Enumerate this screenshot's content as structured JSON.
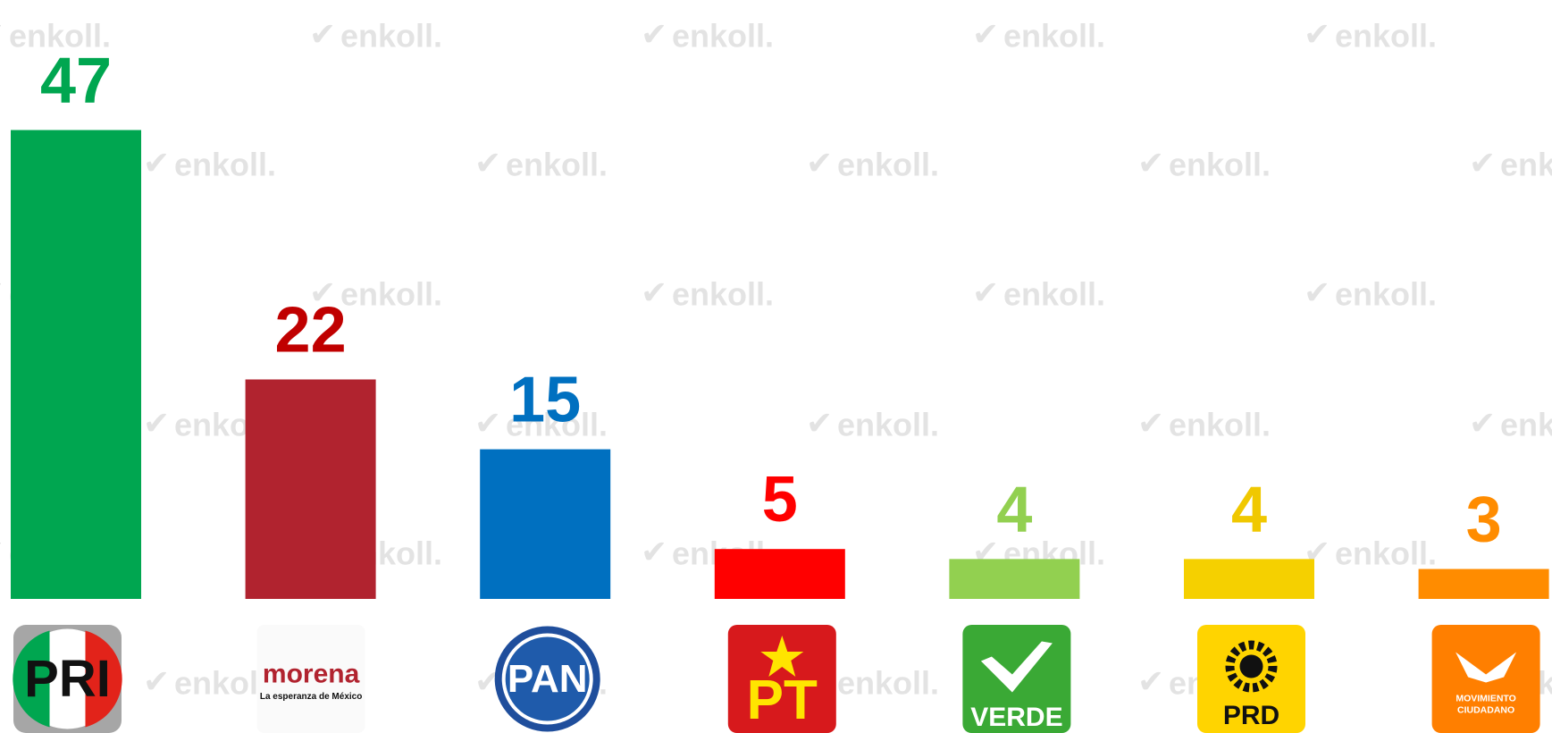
{
  "chart_data": {
    "type": "bar",
    "watermark": "enkoll.",
    "categories": [
      "PRI",
      "morena",
      "PAN",
      "PT",
      "VERDE",
      "PRD",
      "MOVIMIENTO CIUDADANO"
    ],
    "morena_tagline": "La esperanza de México",
    "values": [
      47,
      22,
      15,
      5,
      4,
      4,
      3
    ],
    "colors": [
      "#00a650",
      "#b1232f",
      "#0070c0",
      "#ff0000",
      "#92d050",
      "#f5d000",
      "#ff8c00"
    ],
    "label_colors": [
      "#00a650",
      "#c00000",
      "#0070c0",
      "#ff0000",
      "#92d050",
      "#f0c800",
      "#ff8c00"
    ],
    "ylim": [
      0,
      50
    ]
  }
}
